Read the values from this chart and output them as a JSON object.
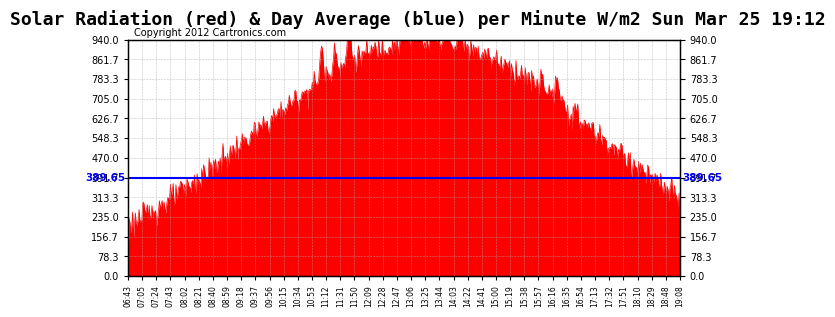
{
  "title": "Solar Radiation (red) & Day Average (blue) per Minute W/m2 Sun Mar 25 19:12",
  "copyright": "Copyright 2012 Cartronics.com",
  "avg_line": 389.65,
  "avg_label": "389.65",
  "ymin": 0.0,
  "ymax": 940.0,
  "yticks": [
    0.0,
    78.3,
    156.7,
    235.0,
    313.3,
    391.7,
    470.0,
    548.3,
    626.7,
    705.0,
    783.3,
    861.7,
    940.0
  ],
  "xtick_labels": [
    "06:43",
    "07:05",
    "07:24",
    "07:43",
    "08:02",
    "08:21",
    "08:40",
    "08:59",
    "09:18",
    "09:37",
    "09:56",
    "10:15",
    "10:34",
    "10:53",
    "11:12",
    "11:31",
    "11:50",
    "12:09",
    "12:28",
    "12:47",
    "13:06",
    "13:25",
    "13:44",
    "14:03",
    "14:22",
    "14:41",
    "15:00",
    "15:19",
    "15:38",
    "15:57",
    "16:16",
    "16:35",
    "16:54",
    "17:13",
    "17:32",
    "17:51",
    "18:10",
    "18:29",
    "18:48",
    "19:08"
  ],
  "line_color": "blue",
  "fill_color": "red",
  "edge_color": "red",
  "background_color": "white",
  "grid_color": "#aaaaaa",
  "title_fontsize": 13,
  "copyright_fontsize": 7,
  "avg_fontsize": 7.5
}
